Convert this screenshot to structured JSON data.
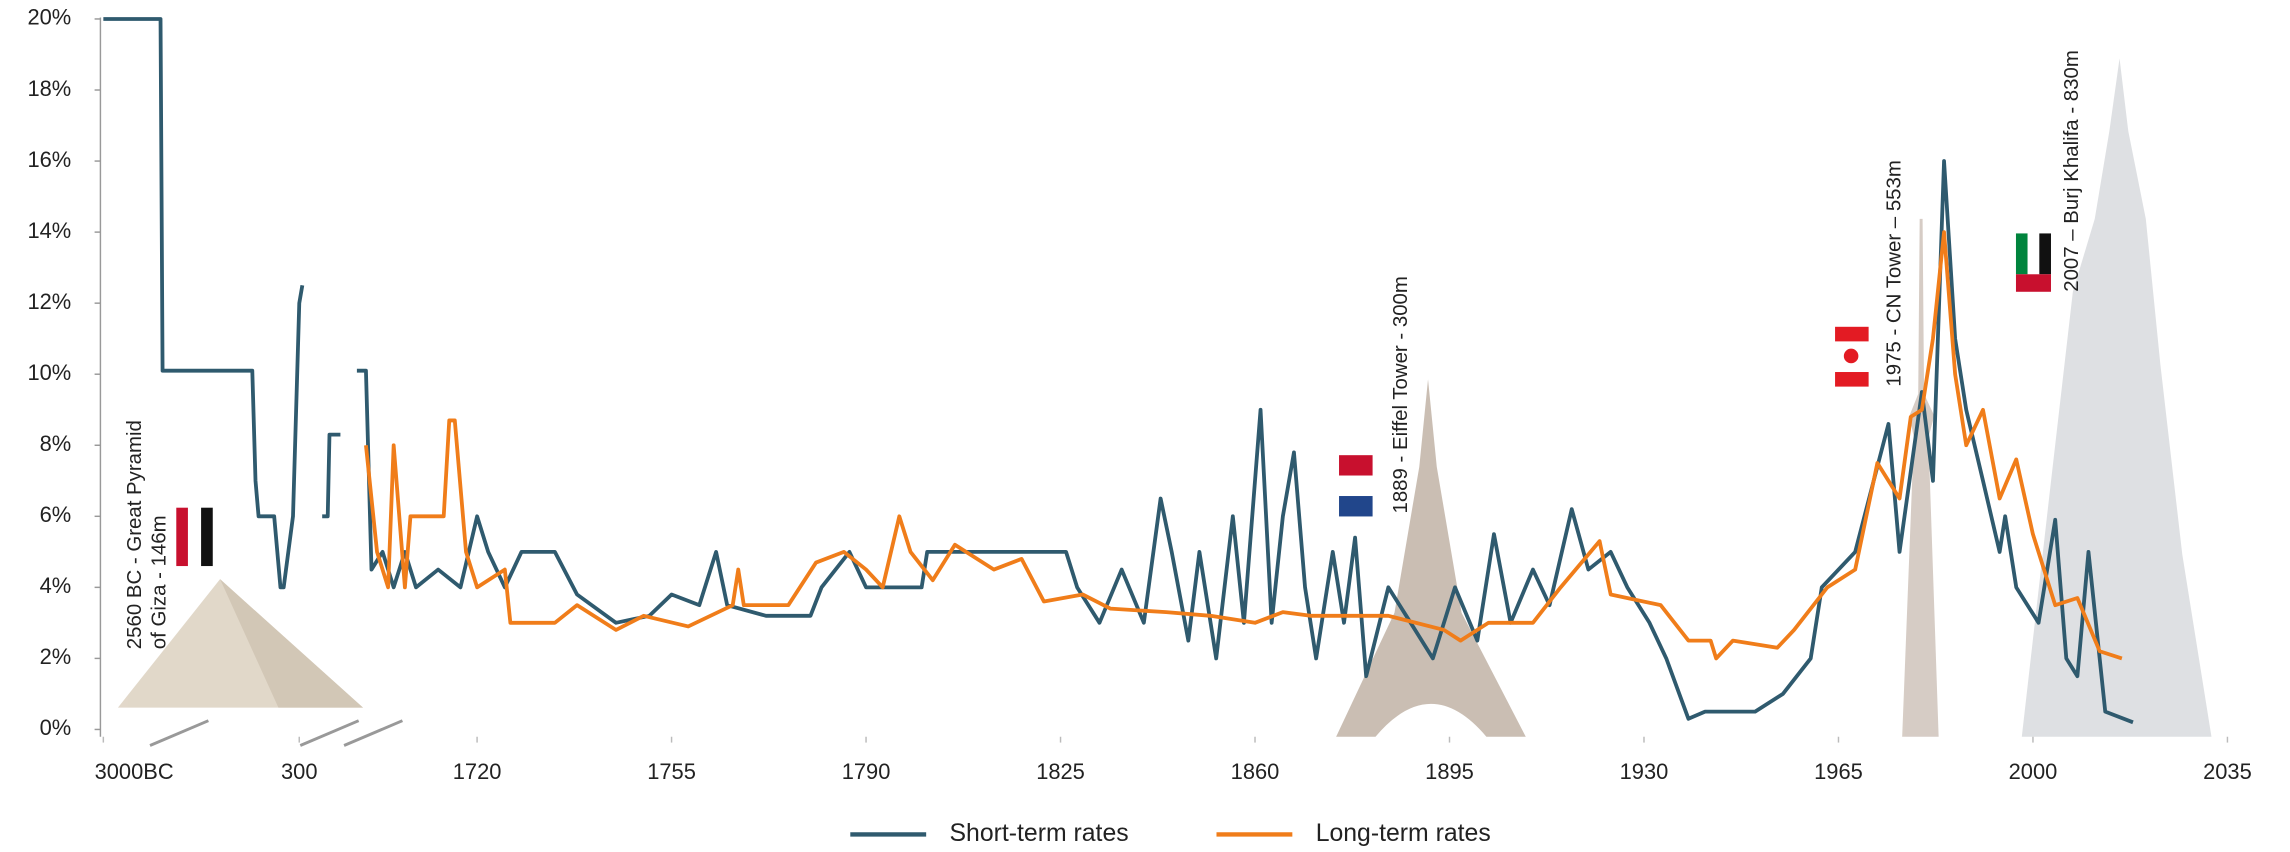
{
  "chart_data": {
    "type": "line",
    "ylim": [
      0,
      20
    ],
    "yticks": [
      {
        "value": 0,
        "label": "0%"
      },
      {
        "value": 2,
        "label": "2%"
      },
      {
        "value": 4,
        "label": "4%"
      },
      {
        "value": 6,
        "label": "6%"
      },
      {
        "value": 8,
        "label": "8%"
      },
      {
        "value": 10,
        "label": "10%"
      },
      {
        "value": 12,
        "label": "12%"
      },
      {
        "value": 14,
        "label": "14%"
      },
      {
        "value": 16,
        "label": "16%"
      },
      {
        "value": 18,
        "label": "18%"
      },
      {
        "value": 20,
        "label": "20%"
      }
    ],
    "x_segments": [
      [
        -3000,
        -2700
      ],
      [
        0,
        350
      ],
      [
        1500,
        1700
      ],
      [
        1700,
        2040
      ]
    ],
    "xticks": [
      {
        "value": -3000,
        "label": "3000BC"
      },
      300,
      1720,
      1755,
      1790,
      1825,
      1860,
      1895,
      1930,
      1965,
      2000,
      2035
    ],
    "annotations": [
      {
        "lines": [
          "2560 BC - Great Pyramid",
          "of Giza - 146m"
        ]
      },
      {
        "lines": [
          "1889 - Eiffel Tower - 300m"
        ]
      },
      {
        "lines": [
          "1975 - CN Tower – 553m"
        ]
      },
      {
        "lines": [
          "2007 – Burj Khalifa - 830m"
        ]
      }
    ],
    "series": [
      {
        "name": "Short-term rates",
        "color": "#2f5a6e",
        "x": [
          -3000,
          -2720,
          -2710,
          -2700,
          0,
          150,
          160,
          170,
          220,
          240,
          250,
          280,
          300,
          310,
          350,
          1500,
          1530,
          1540,
          1600,
          1650,
          1690,
          1700,
          1701,
          1703,
          1705,
          1707,
          1709,
          1713,
          1717,
          1720,
          1722,
          1725,
          1728,
          1734,
          1738,
          1745,
          1751,
          1755,
          1760,
          1763,
          1765,
          1772,
          1780,
          1782,
          1787,
          1790,
          1800,
          1801,
          1826,
          1828,
          1832,
          1836,
          1840,
          1843,
          1845,
          1848,
          1850,
          1853,
          1856,
          1858,
          1861,
          1863,
          1865,
          1867,
          1869,
          1871,
          1874,
          1876,
          1878,
          1880,
          1884,
          1888,
          1892,
          1896,
          1900,
          1903,
          1906,
          1910,
          1913,
          1917,
          1920,
          1924,
          1927,
          1931,
          1934,
          1938,
          1941,
          1950,
          1955,
          1960,
          1962,
          1968,
          1974,
          1976,
          1980,
          1982,
          1984,
          1986,
          1988,
          1991,
          1994,
          1995,
          1997,
          2001,
          2004,
          2006,
          2008,
          2010,
          2013,
          2018
        ],
        "values": [
          20,
          20,
          10.1,
          10.1,
          10.1,
          10.1,
          7,
          6,
          6,
          4,
          4,
          6,
          12,
          12.5,
          null,
          6,
          6,
          8.3,
          8.3,
          null,
          10.1,
          10.1,
          4.5,
          5,
          4,
          5,
          4,
          4.5,
          4,
          6,
          5,
          4,
          5,
          5,
          3.8,
          3,
          3.2,
          3.8,
          3.5,
          5,
          3.5,
          3.2,
          3.2,
          4,
          5,
          4,
          4,
          5,
          5,
          4,
          3,
          4.5,
          3,
          6.5,
          5,
          2.5,
          5,
          2,
          6,
          3,
          9,
          3,
          6,
          7.8,
          4,
          2,
          5,
          3,
          5.4,
          1.5,
          4,
          3,
          2,
          4,
          2.5,
          5.5,
          3,
          4.5,
          3.5,
          6.2,
          4.5,
          5,
          4,
          3,
          2,
          0.3,
          0.5,
          0.5,
          1,
          2,
          4,
          5,
          8.6,
          5,
          9.5,
          7,
          16,
          11,
          9,
          7,
          5,
          6,
          4,
          3,
          5.9,
          2,
          1.5,
          5,
          0.5,
          0.2
        ]
      },
      {
        "name": "Long-term rates",
        "color": "#f07d1a",
        "x": [
          1700,
          1702,
          1704,
          1705,
          1707,
          1708,
          1714,
          1715,
          1716,
          1718,
          1720,
          1725,
          1726,
          1734,
          1738,
          1745,
          1750,
          1758,
          1766,
          1767,
          1768,
          1776,
          1781,
          1786,
          1790,
          1793,
          1796,
          1798,
          1802,
          1806,
          1813,
          1818,
          1822,
          1829,
          1834,
          1844,
          1852,
          1860,
          1865,
          1870,
          1884,
          1894,
          1897,
          1902,
          1910,
          1915,
          1922,
          1924,
          1933,
          1938,
          1942,
          1943,
          1946,
          1954,
          1957,
          1963,
          1968,
          1972,
          1976,
          1978,
          1980,
          1982,
          1984,
          1986,
          1988,
          1991,
          1994,
          1997,
          2000,
          2004,
          2008,
          2012,
          2016
        ],
        "values": [
          8,
          5,
          4,
          8,
          4,
          6,
          6,
          8.7,
          8.7,
          5,
          4,
          4.5,
          3,
          3,
          3.5,
          2.8,
          3.2,
          2.9,
          3.5,
          4.5,
          3.5,
          3.5,
          4.7,
          5,
          4.5,
          4,
          6,
          5,
          4.2,
          5.2,
          4.5,
          4.8,
          3.6,
          3.8,
          3.4,
          3.3,
          3.2,
          3,
          3.3,
          3.2,
          3.2,
          2.8,
          2.5,
          3,
          3,
          4,
          5.3,
          3.8,
          3.5,
          2.5,
          2.5,
          2,
          2.5,
          2.3,
          2.8,
          4,
          4.5,
          7.5,
          6.5,
          8.8,
          9,
          11,
          14,
          10,
          8,
          9,
          6.5,
          7.6,
          5.5,
          3.5,
          3.7,
          2.2,
          2
        ]
      }
    ]
  }
}
